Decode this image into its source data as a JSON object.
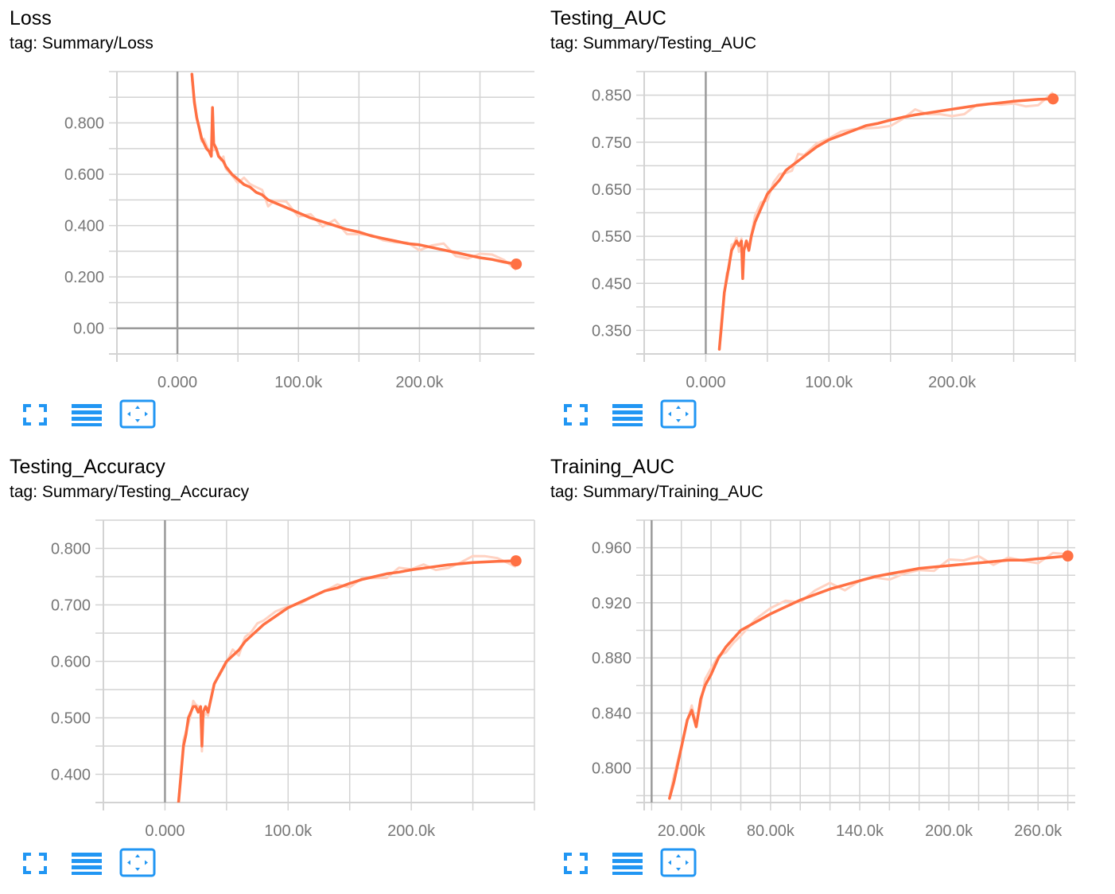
{
  "colors": {
    "accent": "#ff7043",
    "raw_line": "#ffd2c2",
    "grid": "#d3d3d3",
    "axis": "#9a9a9a",
    "tick_text": "#777777",
    "tool_icon": "#2196f3"
  },
  "toolbar_icons": [
    "fullscreen-icon",
    "list-icon",
    "fit-to-data-icon"
  ],
  "chart_data": [
    {
      "type": "line",
      "title": "Loss",
      "tag": "tag: Summary/Loss",
      "xlim": [
        -50000,
        295000
      ],
      "ylim": [
        -0.1,
        1.0
      ],
      "x_ticks": [
        0,
        100000,
        200000
      ],
      "x_tick_labels": [
        "0.000",
        "100.0k",
        "200.0k"
      ],
      "x_minor_step": 50000,
      "y_ticks": [
        0,
        0.2,
        0.4,
        0.6,
        0.8
      ],
      "y_tick_labels": [
        "0.00",
        "0.200",
        "0.400",
        "0.600",
        "0.800"
      ],
      "y_minor_step": 0.1,
      "grid": true,
      "series": [
        {
          "x": [
            12000,
            14000,
            16000,
            18000,
            20000,
            22000,
            24000,
            26000,
            28000,
            29000,
            30000,
            32000,
            34000,
            36000,
            38000,
            40000,
            45000,
            50000,
            55000,
            60000,
            65000,
            70000,
            75000,
            80000,
            90000,
            100000,
            110000,
            120000,
            130000,
            140000,
            150000,
            160000,
            170000,
            180000,
            190000,
            200000,
            210000,
            220000,
            230000,
            240000,
            250000,
            260000,
            270000,
            280000
          ],
          "y": [
            0.99,
            0.88,
            0.82,
            0.78,
            0.74,
            0.72,
            0.7,
            0.69,
            0.67,
            0.86,
            0.72,
            0.7,
            0.67,
            0.66,
            0.65,
            0.63,
            0.6,
            0.58,
            0.56,
            0.55,
            0.53,
            0.52,
            0.5,
            0.49,
            0.47,
            0.45,
            0.43,
            0.415,
            0.4,
            0.385,
            0.375,
            0.36,
            0.35,
            0.34,
            0.33,
            0.325,
            0.315,
            0.305,
            0.295,
            0.285,
            0.275,
            0.268,
            0.258,
            0.25
          ]
        }
      ]
    },
    {
      "type": "line",
      "title": "Testing_AUC",
      "tag": "tag: Summary/Testing_AUC",
      "xlim": [
        -50000,
        300000
      ],
      "ylim": [
        0.3,
        0.9
      ],
      "x_ticks": [
        0,
        100000,
        200000
      ],
      "x_tick_labels": [
        "0.000",
        "100.0k",
        "200.0k"
      ],
      "x_minor_step": 50000,
      "y_ticks": [
        0.35,
        0.45,
        0.55,
        0.65,
        0.75,
        0.85
      ],
      "y_tick_labels": [
        "0.350",
        "0.450",
        "0.550",
        "0.650",
        "0.750",
        "0.850"
      ],
      "y_minor_step": 0.05,
      "grid": true,
      "series": [
        {
          "x": [
            11000,
            13000,
            15000,
            17000,
            19000,
            21000,
            23000,
            25000,
            27000,
            29000,
            30000,
            31000,
            33000,
            35000,
            37000,
            40000,
            45000,
            50000,
            55000,
            60000,
            65000,
            70000,
            75000,
            80000,
            90000,
            100000,
            110000,
            120000,
            130000,
            140000,
            150000,
            160000,
            170000,
            180000,
            190000,
            200000,
            210000,
            220000,
            230000,
            240000,
            250000,
            260000,
            270000,
            282000
          ],
          "y": [
            0.31,
            0.37,
            0.43,
            0.46,
            0.49,
            0.52,
            0.53,
            0.54,
            0.53,
            0.54,
            0.46,
            0.52,
            0.54,
            0.52,
            0.55,
            0.58,
            0.61,
            0.64,
            0.655,
            0.67,
            0.69,
            0.7,
            0.71,
            0.72,
            0.74,
            0.755,
            0.765,
            0.775,
            0.785,
            0.79,
            0.797,
            0.803,
            0.808,
            0.812,
            0.816,
            0.82,
            0.824,
            0.828,
            0.831,
            0.834,
            0.837,
            0.839,
            0.841,
            0.842
          ]
        }
      ]
    },
    {
      "type": "line",
      "title": "Testing_Accuracy",
      "tag": "tag: Summary/Testing_Accuracy",
      "xlim": [
        -50000,
        300000
      ],
      "ylim": [
        0.35,
        0.85
      ],
      "x_ticks": [
        0,
        100000,
        200000
      ],
      "x_tick_labels": [
        "0.000",
        "100.0k",
        "200.0k"
      ],
      "x_minor_step": 50000,
      "y_ticks": [
        0.4,
        0.5,
        0.6,
        0.7,
        0.8
      ],
      "y_tick_labels": [
        "0.400",
        "0.500",
        "0.600",
        "0.700",
        "0.800"
      ],
      "y_minor_step": 0.05,
      "grid": true,
      "series": [
        {
          "x": [
            11000,
            13000,
            15000,
            17000,
            19000,
            21000,
            23000,
            25000,
            27000,
            29000,
            30000,
            31000,
            33000,
            35000,
            37000,
            40000,
            45000,
            50000,
            55000,
            60000,
            65000,
            70000,
            75000,
            80000,
            90000,
            100000,
            110000,
            120000,
            130000,
            140000,
            150000,
            160000,
            170000,
            180000,
            190000,
            200000,
            210000,
            220000,
            230000,
            240000,
            250000,
            260000,
            270000,
            285000
          ],
          "y": [
            0.35,
            0.4,
            0.45,
            0.47,
            0.5,
            0.51,
            0.52,
            0.52,
            0.51,
            0.52,
            0.45,
            0.51,
            0.52,
            0.51,
            0.53,
            0.56,
            0.58,
            0.6,
            0.61,
            0.62,
            0.635,
            0.645,
            0.655,
            0.665,
            0.68,
            0.695,
            0.705,
            0.715,
            0.725,
            0.73,
            0.738,
            0.745,
            0.75,
            0.755,
            0.758,
            0.762,
            0.765,
            0.768,
            0.771,
            0.773,
            0.775,
            0.776,
            0.777,
            0.778
          ]
        }
      ]
    },
    {
      "type": "line",
      "title": "Training_AUC",
      "tag": "tag: Summary/Training_AUC",
      "xlim": [
        -5000,
        285000
      ],
      "ylim": [
        0.775,
        0.98
      ],
      "x_ticks": [
        20000,
        80000,
        140000,
        200000,
        260000
      ],
      "x_tick_labels": [
        "20.00k",
        "80.00k",
        "140.0k",
        "200.0k",
        "260.0k"
      ],
      "x_minor_step": 20000,
      "y_ticks": [
        0.8,
        0.84,
        0.88,
        0.92,
        0.96
      ],
      "y_tick_labels": [
        "0.800",
        "0.840",
        "0.880",
        "0.920",
        "0.960"
      ],
      "y_minor_step": 0.02,
      "grid": true,
      "series": [
        {
          "x": [
            12000,
            15000,
            18000,
            21000,
            24000,
            27000,
            30000,
            33000,
            36000,
            40000,
            45000,
            50000,
            55000,
            60000,
            70000,
            80000,
            90000,
            100000,
            110000,
            120000,
            130000,
            140000,
            150000,
            160000,
            170000,
            180000,
            190000,
            200000,
            210000,
            220000,
            230000,
            240000,
            250000,
            260000,
            270000,
            280000
          ],
          "y": [
            0.778,
            0.79,
            0.805,
            0.82,
            0.835,
            0.842,
            0.83,
            0.85,
            0.86,
            0.868,
            0.88,
            0.888,
            0.894,
            0.9,
            0.906,
            0.912,
            0.917,
            0.922,
            0.926,
            0.93,
            0.933,
            0.936,
            0.939,
            0.941,
            0.943,
            0.945,
            0.946,
            0.947,
            0.948,
            0.949,
            0.95,
            0.951,
            0.951,
            0.952,
            0.953,
            0.954
          ]
        }
      ]
    }
  ]
}
